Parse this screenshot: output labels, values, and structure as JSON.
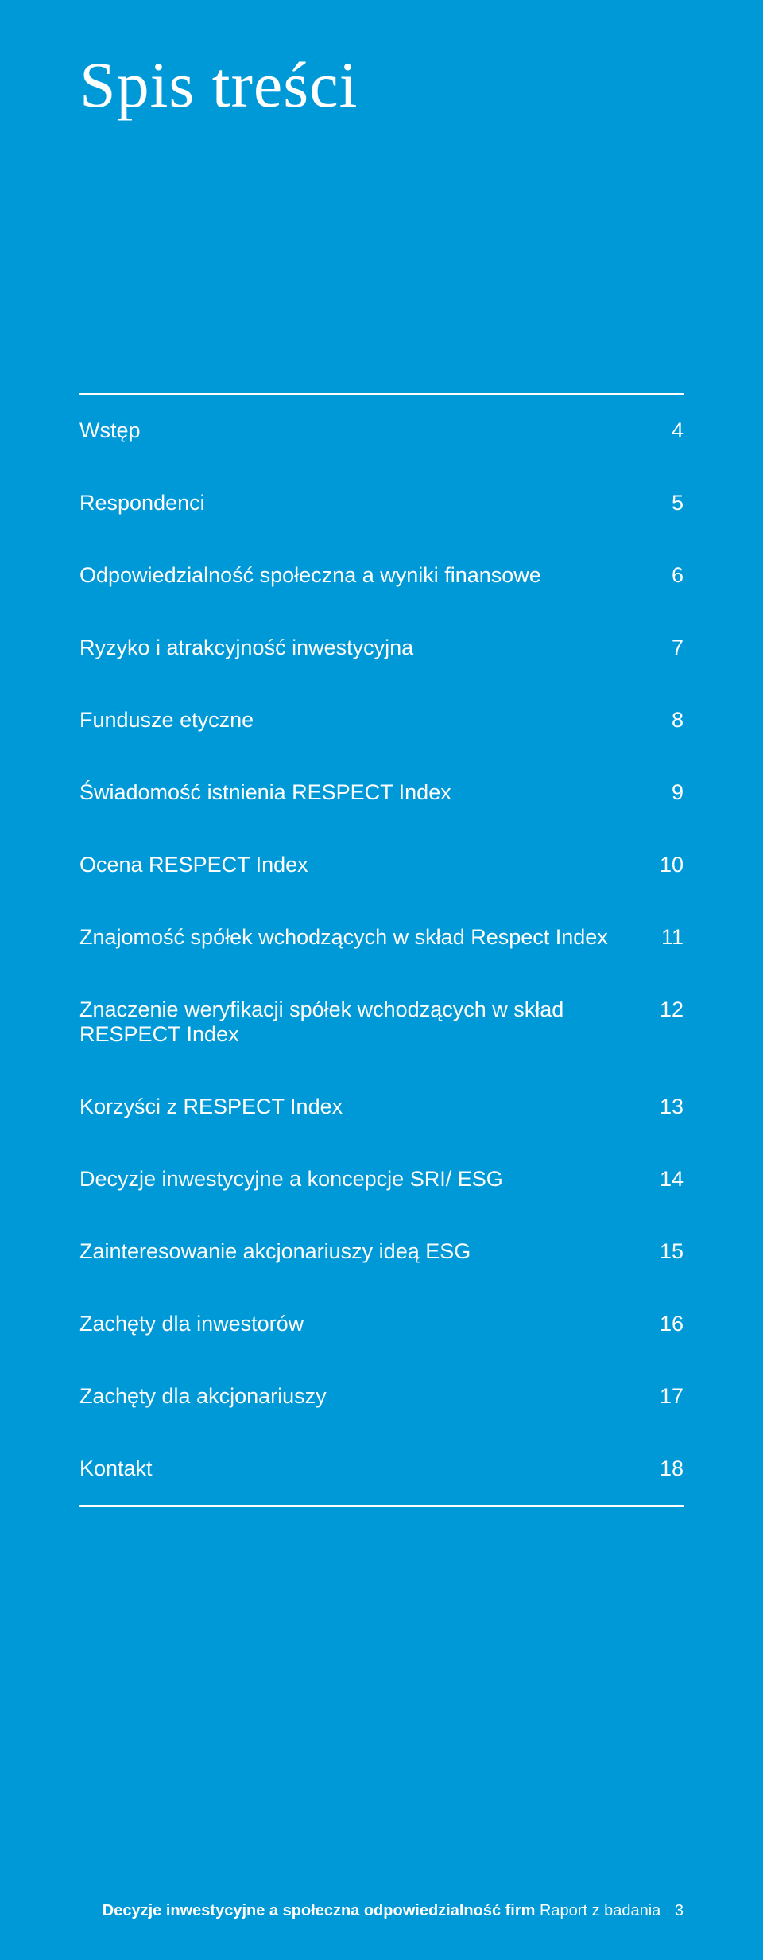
{
  "title": "Spis treści",
  "background_color": "#0099d8",
  "text_color": "#ffffff",
  "title_fontsize": 82,
  "toc_fontsize": 27,
  "footer_fontsize": 20,
  "toc": [
    {
      "label": "Wstęp",
      "page": "4"
    },
    {
      "label": "Respondenci",
      "page": "5"
    },
    {
      "label": "Odpowiedzialność społeczna a wyniki finansowe",
      "page": "6"
    },
    {
      "label": "Ryzyko i atrakcyjność inwestycyjna",
      "page": "7"
    },
    {
      "label": "Fundusze etyczne",
      "page": "8"
    },
    {
      "label": "Świadomość istnienia RESPECT Index",
      "page": "9"
    },
    {
      "label": "Ocena RESPECT Index",
      "page": "10"
    },
    {
      "label": "Znajomość spółek wchodzących w skład Respect Index",
      "page": "11"
    },
    {
      "label": "Znaczenie weryfikacji spółek wchodzących w skład RESPECT Index",
      "page": "12"
    },
    {
      "label": "Korzyści z RESPECT Index",
      "page": "13"
    },
    {
      "label": "Decyzje inwestycyjne a koncepcje SRI/ ESG",
      "page": "14"
    },
    {
      "label": "Zainteresowanie akcjonariuszy ideą ESG",
      "page": "15"
    },
    {
      "label": "Zachęty dla inwestorów",
      "page": "16"
    },
    {
      "label": "Zachęty dla akcjonariuszy",
      "page": "17"
    },
    {
      "label": "Kontakt",
      "page": "18"
    }
  ],
  "footer": {
    "bold_text": "Decyzje inwestycyjne a społeczna odpowiedzialność firm",
    "regular_text": "Raport z badania",
    "page_number": "3"
  }
}
